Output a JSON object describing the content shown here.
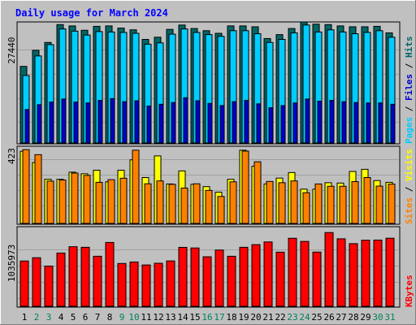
{
  "chart_data": [
    {
      "type": "bar",
      "title": "Daily usage for March 2024",
      "categories": [
        "1",
        "2",
        "3",
        "4",
        "5",
        "6",
        "7",
        "8",
        "9",
        "10",
        "11",
        "12",
        "13",
        "14",
        "15",
        "16",
        "17",
        "18",
        "19",
        "20",
        "21",
        "22",
        "23",
        "24",
        "25",
        "26",
        "27",
        "28",
        "29",
        "30",
        "31"
      ],
      "weekend_days": [
        "2",
        "3",
        "9",
        "10",
        "16",
        "17",
        "23",
        "24",
        "30",
        "31"
      ],
      "ymax_label": "27440",
      "ylim": [
        0,
        27440
      ],
      "series": [
        {
          "name": "Hits",
          "color": "#006666",
          "values": [
            17600,
            21300,
            23100,
            27200,
            26900,
            25900,
            26800,
            26900,
            26400,
            26000,
            23800,
            24300,
            26100,
            27100,
            26300,
            25800,
            25200,
            26900,
            26900,
            26700,
            24000,
            24900,
            26300,
            27800,
            27300,
            27200,
            26900,
            26700,
            26700,
            26800,
            25300
          ]
        },
        {
          "name": "Files",
          "color": "#00ccff",
          "values": [
            15500,
            20000,
            22600,
            26200,
            25700,
            24800,
            25600,
            25500,
            25400,
            25200,
            22700,
            23000,
            25000,
            26200,
            25400,
            24900,
            24500,
            25800,
            25800,
            25100,
            23100,
            23800,
            25300,
            27100,
            25500,
            26000,
            25500,
            25100,
            25400,
            25800,
            24300
          ]
        },
        {
          "name": "Pages",
          "color": "#0000cc",
          "values": [
            7700,
            8800,
            9400,
            10100,
            9400,
            9200,
            9800,
            10200,
            9500,
            9700,
            8500,
            8900,
            9300,
            10400,
            9700,
            9100,
            8600,
            9500,
            9800,
            9000,
            8100,
            8600,
            9200,
            10100,
            9600,
            9800,
            9500,
            9300,
            9200,
            9200,
            8900
          ]
        }
      ]
    },
    {
      "type": "bar",
      "ymax_label": "423",
      "ylim": [
        0,
        423
      ],
      "series": [
        {
          "name": "Visits",
          "color": "#ffff00",
          "values": [
            404,
            341,
            247,
            247,
            287,
            278,
            298,
            233,
            298,
            356,
            257,
            378,
            221,
            294,
            219,
            206,
            175,
            247,
            410,
            320,
            221,
            254,
            285,
            192,
            192,
            228,
            226,
            291,
            303,
            240,
            230
          ]
        },
        {
          "name": "Sites",
          "color": "#ff8000",
          "values": [
            413,
            385,
            237,
            243,
            282,
            269,
            230,
            245,
            253,
            410,
            222,
            238,
            219,
            198,
            222,
            185,
            151,
            233,
            405,
            345,
            235,
            228,
            238,
            172,
            221,
            208,
            208,
            234,
            257,
            209,
            220
          ]
        }
      ]
    },
    {
      "type": "bar",
      "ymax_label": "1035973",
      "ylim": [
        0,
        1035973
      ],
      "series": [
        {
          "name": "KBytes",
          "color": "#ff0000",
          "values": [
            608000,
            652000,
            540000,
            715000,
            800000,
            792000,
            672000,
            857000,
            575000,
            595000,
            555000,
            578000,
            609000,
            791000,
            783000,
            665000,
            755000,
            672000,
            792000,
            828000,
            864000,
            727000,
            913000,
            871000,
            728000,
            990000,
            906000,
            841000,
            887000,
            889000,
            914000
          ]
        }
      ]
    }
  ],
  "colors": {
    "background": "#c0c0c0",
    "title": "#0000ff",
    "weekday_label": "#000000",
    "weekend_label": "#00805c"
  }
}
